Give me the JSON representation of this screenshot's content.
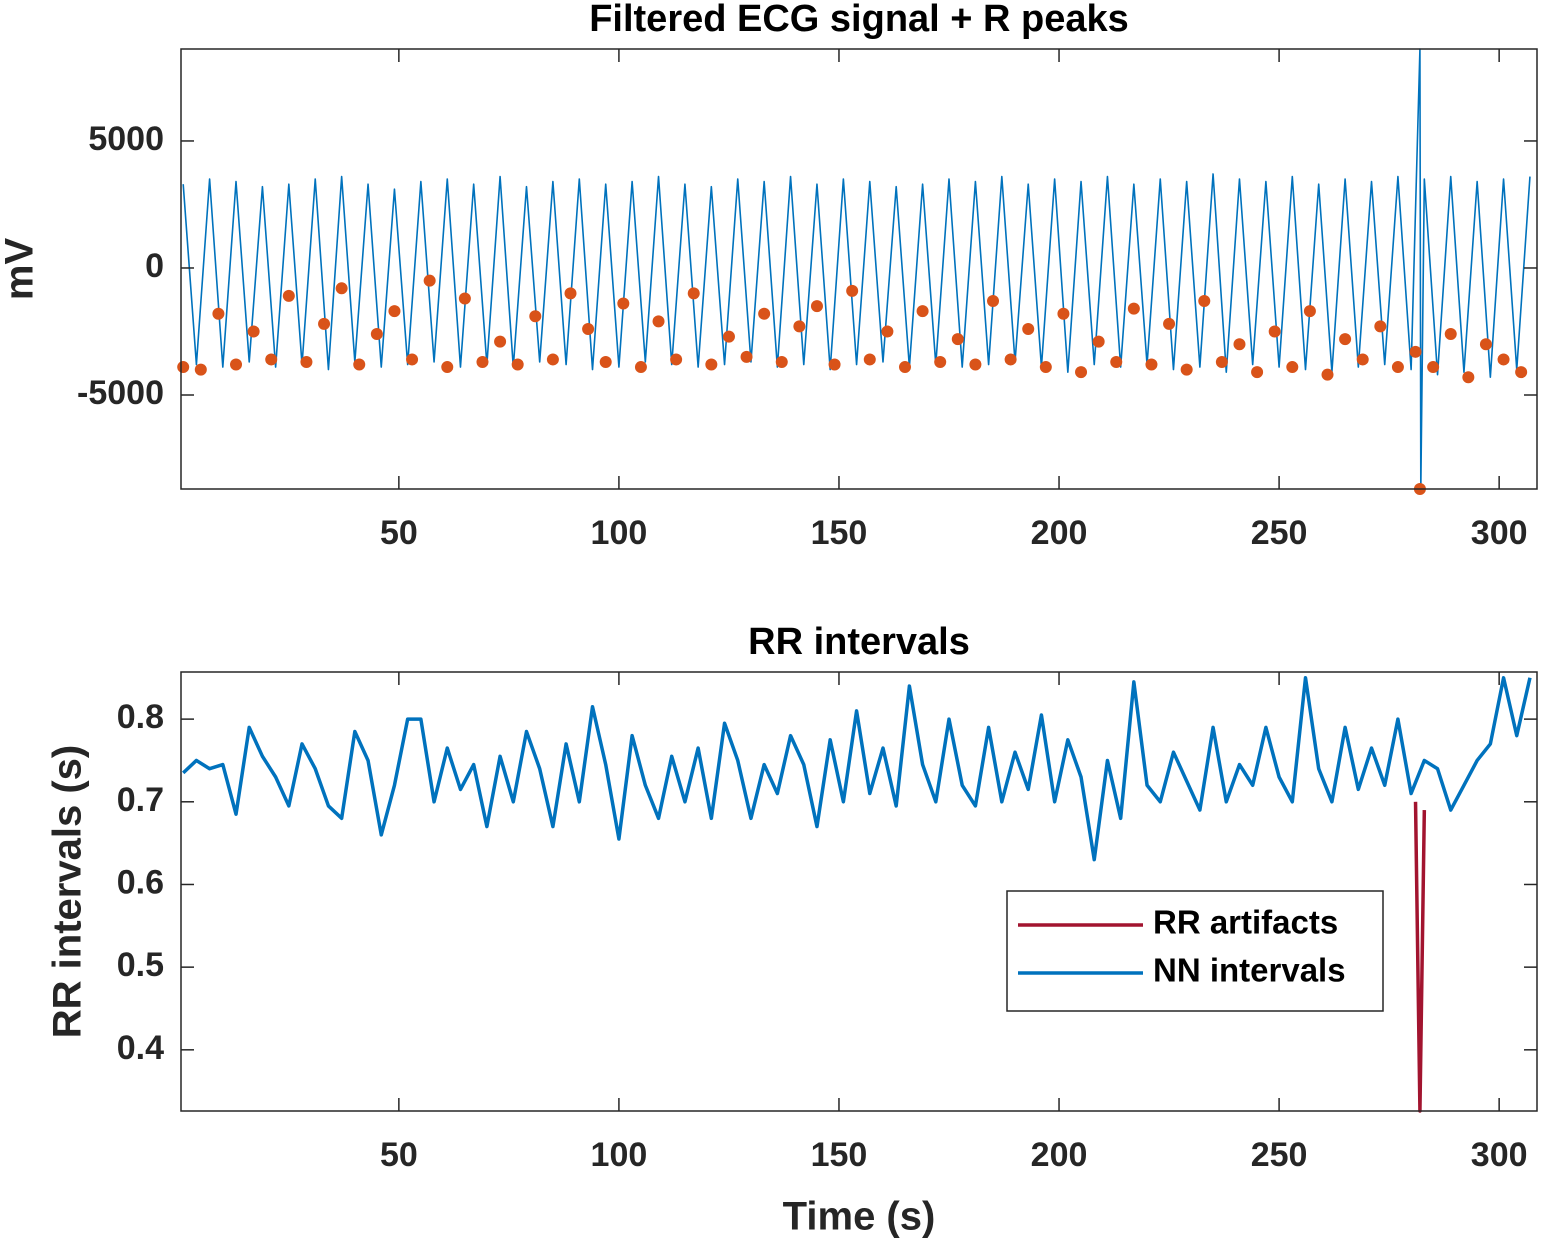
{
  "chart_data": [
    {
      "type": "line",
      "title": "Filtered ECG signal + R peaks",
      "ylabel": "mV",
      "xlim": [
        0.5,
        308.6
      ],
      "ylim": [
        -8700,
        8620
      ],
      "xticks": [
        50,
        100,
        150,
        200,
        250,
        300
      ],
      "yticks": [
        -5000,
        0,
        5000
      ],
      "series": [
        {
          "type": "line",
          "color": "#0072bd",
          "x": [
            1,
            4,
            7,
            10,
            13,
            16,
            19,
            22,
            25,
            28,
            31,
            34,
            37,
            40,
            43,
            46,
            49,
            52,
            55,
            58,
            61,
            64,
            67,
            70,
            73,
            76,
            79,
            82,
            85,
            88,
            91,
            94,
            97,
            100,
            103,
            106,
            109,
            112,
            115,
            118,
            121,
            124,
            127,
            130,
            133,
            136,
            139,
            142,
            145,
            148,
            151,
            154,
            157,
            160,
            163,
            166,
            169,
            172,
            175,
            178,
            181,
            184,
            187,
            190,
            193,
            196,
            199,
            202,
            205,
            208,
            211,
            214,
            217,
            220,
            223,
            226,
            229,
            232,
            235,
            238,
            241,
            244,
            247,
            250,
            253,
            256,
            259,
            262,
            265,
            268,
            271,
            274,
            277,
            280,
            282,
            282.2,
            283,
            286,
            289,
            292,
            295,
            298,
            301,
            304,
            307
          ],
          "values": [
            3300,
            -3800,
            3500,
            -3900,
            3400,
            -3700,
            3200,
            -3900,
            3300,
            -3800,
            3500,
            -4000,
            3600,
            -3700,
            3300,
            -3900,
            3100,
            -3800,
            3400,
            -3700,
            3500,
            -3900,
            3300,
            -3800,
            3600,
            -3900,
            3200,
            -3700,
            3400,
            -3800,
            3500,
            -4000,
            3300,
            -3900,
            3400,
            -3700,
            3600,
            -3800,
            3300,
            -3900,
            3200,
            -3800,
            3500,
            -3700,
            3400,
            -3900,
            3600,
            -3800,
            3300,
            -4000,
            3500,
            -3800,
            3400,
            -3700,
            3200,
            -3900,
            3300,
            -3800,
            3500,
            -3900,
            3400,
            -3800,
            3600,
            -3700,
            3300,
            -3900,
            3500,
            -4100,
            3400,
            -3800,
            3600,
            -3900,
            3300,
            -3800,
            3500,
            -4000,
            3400,
            -3900,
            3700,
            -4100,
            3500,
            -3800,
            3400,
            -3900,
            3600,
            -4000,
            3300,
            -4100,
            3500,
            -3900,
            3400,
            -3800,
            3600,
            -4000,
            8620,
            -8700,
            3500,
            -4200,
            3600,
            -4100,
            3400,
            -4300,
            3500,
            -4000,
            3600
          ]
        },
        {
          "type": "scatter",
          "color": "#d95319",
          "x": [
            1,
            5,
            9,
            13,
            17,
            21,
            25,
            29,
            33,
            37,
            41,
            45,
            49,
            53,
            57,
            61,
            65,
            69,
            73,
            77,
            81,
            85,
            89,
            93,
            97,
            101,
            105,
            109,
            113,
            117,
            121,
            125,
            129,
            133,
            137,
            141,
            145,
            149,
            153,
            157,
            161,
            165,
            169,
            173,
            177,
            181,
            185,
            189,
            193,
            197,
            201,
            205,
            209,
            213,
            217,
            221,
            225,
            229,
            233,
            237,
            241,
            245,
            249,
            253,
            257,
            261,
            265,
            269,
            273,
            277,
            281,
            282,
            285,
            289,
            293,
            297,
            301,
            305
          ],
          "values": [
            -3900,
            -4000,
            -1800,
            -3800,
            -2500,
            -3600,
            -1100,
            -3700,
            -2200,
            -800,
            -3800,
            -2600,
            -1700,
            -3600,
            -500,
            -3900,
            -1200,
            -3700,
            -2900,
            -3800,
            -1900,
            -3600,
            -1000,
            -2400,
            -3700,
            -1400,
            -3900,
            -2100,
            -3600,
            -1000,
            -3800,
            -2700,
            -3500,
            -1800,
            -3700,
            -2300,
            -1500,
            -3800,
            -900,
            -3600,
            -2500,
            -3900,
            -1700,
            -3700,
            -2800,
            -3800,
            -1300,
            -3600,
            -2400,
            -3900,
            -1800,
            -4100,
            -2900,
            -3700,
            -1600,
            -3800,
            -2200,
            -4000,
            -1300,
            -3700,
            -3000,
            -4100,
            -2500,
            -3900,
            -1700,
            -4200,
            -2800,
            -3600,
            -2300,
            -3900,
            -3300,
            -8700,
            -3900,
            -2600,
            -4300,
            -3000,
            -3600,
            -4100
          ]
        }
      ]
    },
    {
      "type": "line",
      "title": "RR intervals",
      "ylabel": "RR intervals (s)",
      "xlabel": "Time (s)",
      "xlim": [
        0.5,
        308.6
      ],
      "ylim": [
        0.326,
        0.857
      ],
      "xticks": [
        50,
        100,
        150,
        200,
        250,
        300
      ],
      "yticks": [
        0.4,
        0.5,
        0.6,
        0.7,
        0.8
      ],
      "legend": "lower right",
      "series": [
        {
          "name": "RR artifacts",
          "type": "line",
          "color": "#a2142f",
          "x": [
            281,
            282,
            283
          ],
          "values": [
            0.7,
            0.326,
            0.69
          ]
        },
        {
          "name": "NN intervals",
          "type": "line",
          "color": "#0072bd",
          "x": [
            1,
            4,
            7,
            10,
            13,
            16,
            19,
            22,
            25,
            28,
            31,
            34,
            37,
            40,
            43,
            46,
            49,
            52,
            55,
            58,
            61,
            64,
            67,
            70,
            73,
            76,
            79,
            82,
            85,
            88,
            91,
            94,
            97,
            100,
            103,
            106,
            109,
            112,
            115,
            118,
            121,
            124,
            127,
            130,
            133,
            136,
            139,
            142,
            145,
            148,
            151,
            154,
            157,
            160,
            163,
            166,
            169,
            172,
            175,
            178,
            181,
            184,
            187,
            190,
            193,
            196,
            199,
            202,
            205,
            208,
            211,
            214,
            217,
            220,
            223,
            226,
            229,
            232,
            235,
            238,
            241,
            244,
            247,
            250,
            253,
            256,
            259,
            262,
            265,
            268,
            271,
            274,
            277,
            280,
            283,
            286,
            289,
            292,
            295,
            298,
            301,
            304,
            307
          ],
          "values": [
            0.735,
            0.75,
            0.74,
            0.745,
            0.685,
            0.79,
            0.755,
            0.73,
            0.695,
            0.77,
            0.74,
            0.695,
            0.68,
            0.785,
            0.75,
            0.66,
            0.72,
            0.8,
            0.8,
            0.7,
            0.765,
            0.715,
            0.745,
            0.67,
            0.755,
            0.7,
            0.785,
            0.74,
            0.67,
            0.77,
            0.7,
            0.815,
            0.745,
            0.655,
            0.78,
            0.72,
            0.68,
            0.755,
            0.7,
            0.765,
            0.68,
            0.795,
            0.75,
            0.68,
            0.745,
            0.71,
            0.78,
            0.745,
            0.67,
            0.775,
            0.7,
            0.81,
            0.71,
            0.765,
            0.695,
            0.84,
            0.745,
            0.7,
            0.8,
            0.72,
            0.695,
            0.79,
            0.7,
            0.76,
            0.715,
            0.805,
            0.7,
            0.775,
            0.73,
            0.63,
            0.75,
            0.68,
            0.845,
            0.72,
            0.7,
            0.76,
            0.725,
            0.69,
            0.79,
            0.7,
            0.745,
            0.72,
            0.79,
            0.73,
            0.7,
            0.85,
            0.74,
            0.7,
            0.79,
            0.715,
            0.765,
            0.72,
            0.8,
            0.71,
            0.75,
            0.74,
            0.69,
            0.72,
            0.75,
            0.77,
            0.85,
            0.78,
            0.85
          ]
        }
      ]
    }
  ]
}
